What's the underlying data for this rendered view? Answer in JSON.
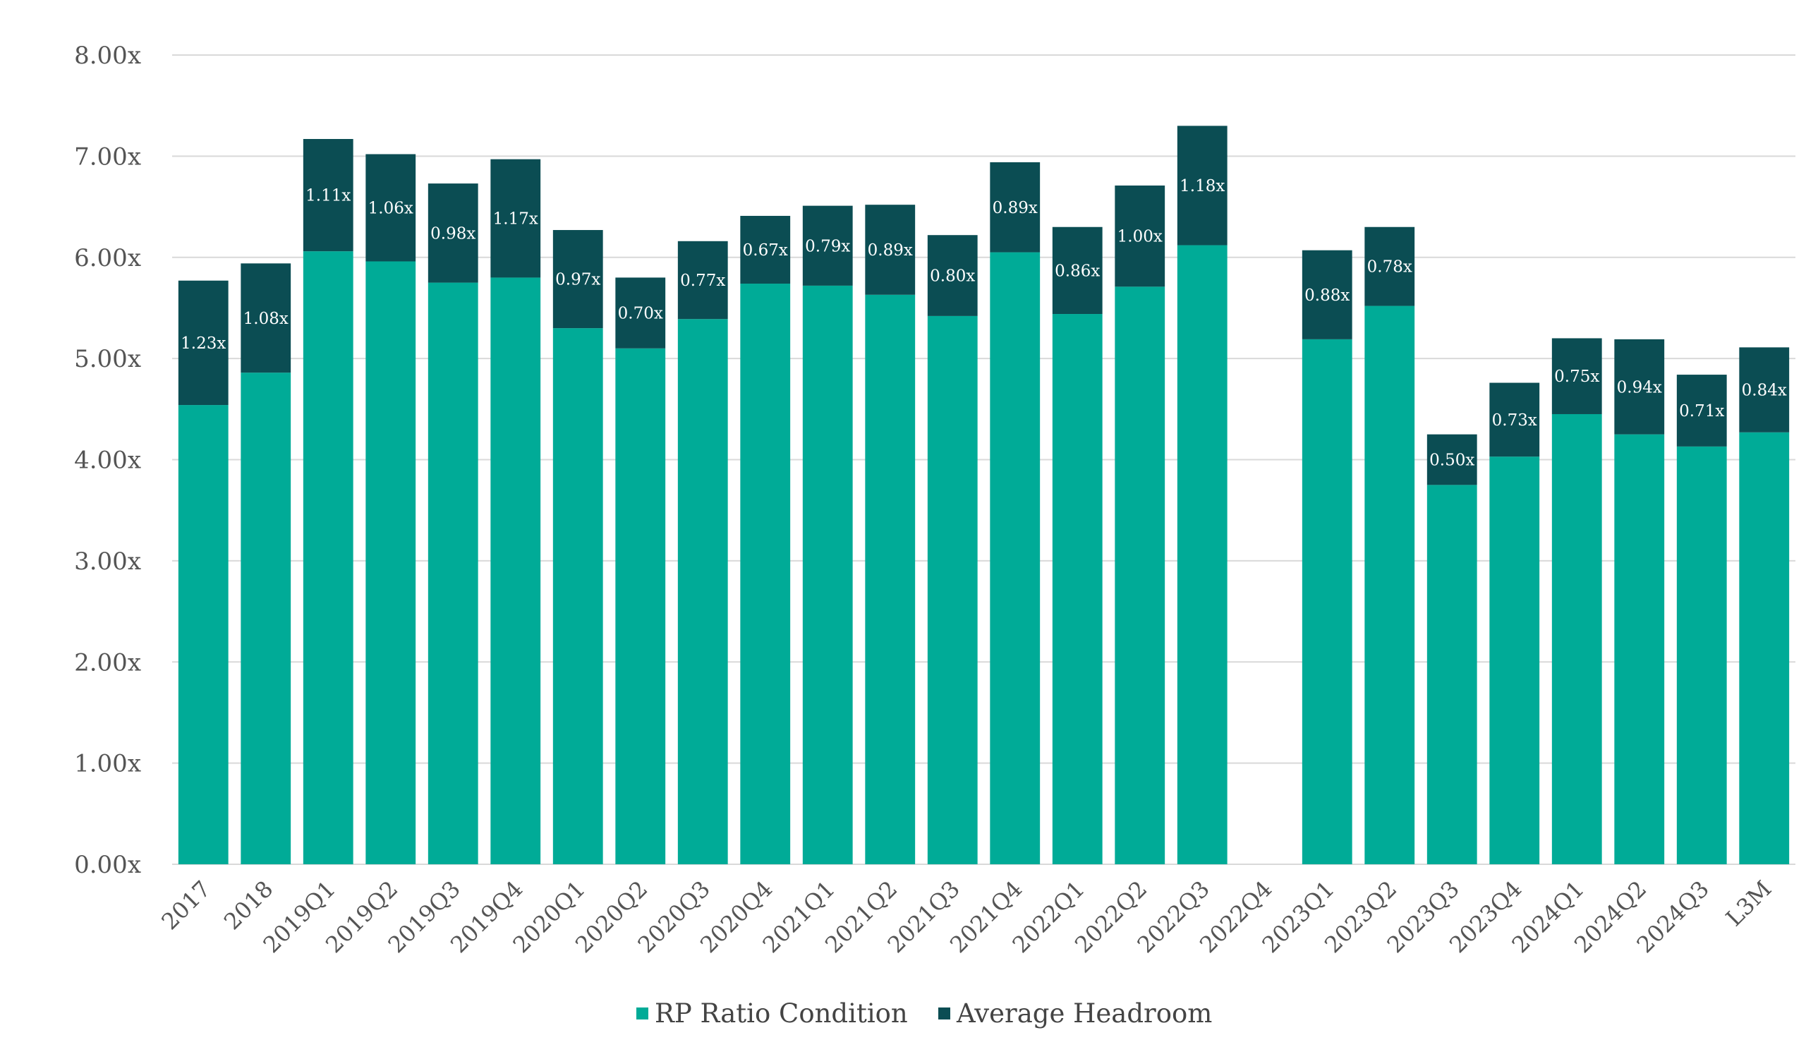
{
  "chart_data": {
    "type": "bar",
    "stacked": true,
    "categories": [
      "2017",
      "2018",
      "2019Q1",
      "2019Q2",
      "2019Q3",
      "2019Q4",
      "2020Q1",
      "2020Q2",
      "2020Q3",
      "2020Q4",
      "2021Q1",
      "2021Q2",
      "2021Q3",
      "2021Q4",
      "2022Q1",
      "2022Q2",
      "2022Q3",
      "2022Q4",
      "2023Q1",
      "2023Q2",
      "2023Q3",
      "2023Q4",
      "2024Q1",
      "2024Q2",
      "2024Q3",
      "L3M"
    ],
    "series": [
      {
        "name": "RP Ratio Condition",
        "color": "#00ab97",
        "values": [
          4.54,
          4.86,
          6.06,
          5.96,
          5.75,
          5.8,
          5.3,
          5.1,
          5.39,
          5.74,
          5.72,
          5.63,
          5.42,
          6.05,
          5.44,
          5.71,
          6.12,
          null,
          5.19,
          5.52,
          3.75,
          4.03,
          4.45,
          4.25,
          4.13,
          4.27
        ]
      },
      {
        "name": "Average Headroom",
        "color": "#0b4d53",
        "values": [
          1.23,
          1.08,
          1.11,
          1.06,
          0.98,
          1.17,
          0.97,
          0.7,
          0.77,
          0.67,
          0.79,
          0.89,
          0.8,
          0.89,
          0.86,
          1.0,
          1.18,
          null,
          0.88,
          0.78,
          0.5,
          0.73,
          0.75,
          0.94,
          0.71,
          0.84
        ]
      }
    ],
    "data_labels": [
      "1.23x",
      "1.08x",
      "1.11x",
      "1.06x",
      "0.98x",
      "1.17x",
      "0.97x",
      "0.70x",
      "0.77x",
      "0.67x",
      "0.79x",
      "0.89x",
      "0.80x",
      "0.89x",
      "0.86x",
      "1.00x",
      "1.18x",
      "",
      "0.88x",
      "0.78x",
      "0.50x",
      "0.73x",
      "0.75x",
      "0.94x",
      "0.71x",
      "0.84x"
    ],
    "ylim": [
      0,
      8
    ],
    "yticks": [
      "0.00x",
      "1.00x",
      "2.00x",
      "3.00x",
      "4.00x",
      "5.00x",
      "6.00x",
      "7.00x",
      "8.00x"
    ],
    "title": "",
    "xlabel": "",
    "ylabel": "",
    "grid": true,
    "legend_position": "bottom-center",
    "colors": {
      "grid": "#d9d9d9",
      "tick_text": "#555555",
      "label_text": "#ffffff"
    }
  }
}
